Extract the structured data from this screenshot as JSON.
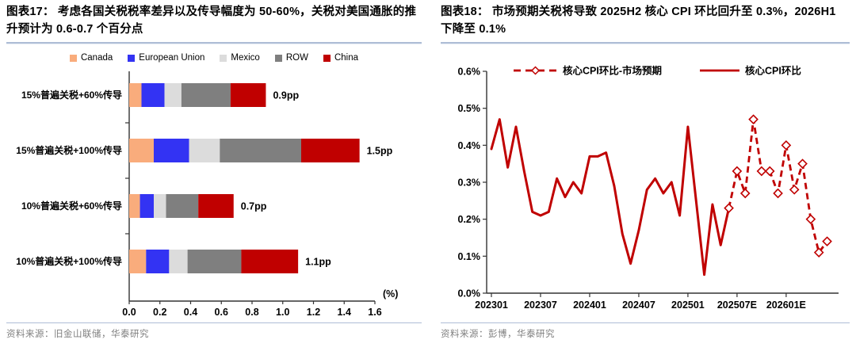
{
  "colors": {
    "accent_rule": "#AEBDD6",
    "axis": "#333333",
    "red_line": "#C00000",
    "source_gray": "#7F7F7F",
    "bar_palette": [
      "#F9AC7C",
      "#3333F3",
      "#DCDCDC",
      "#7F7F7F",
      "#C00000"
    ]
  },
  "figure17": {
    "title": "图表17： 考虑各国关税税率差异以及传导幅度为 50-60%，关税对美国通胀的推升预计为 0.6-0.7 个百分点",
    "source": "资料来源：旧金山联储，华泰研究",
    "chart_data": {
      "type": "bar",
      "orientation": "horizontal",
      "stacked": true,
      "legend_position": "top",
      "grid": false,
      "series_names": [
        "Canada",
        "European Union",
        "Mexico",
        "ROW",
        "China"
      ],
      "series_colors": [
        "#F9AC7C",
        "#3333F3",
        "#DCDCDC",
        "#7F7F7F",
        "#C00000"
      ],
      "categories": [
        "15%普遍关税+60%传导",
        "15%普遍关税+100%传导",
        "10%普遍关税+60%传导",
        "10%普遍关税+100%传导"
      ],
      "values": [
        [
          0.08,
          0.15,
          0.11,
          0.32,
          0.23
        ],
        [
          0.16,
          0.23,
          0.2,
          0.53,
          0.38
        ],
        [
          0.07,
          0.09,
          0.08,
          0.21,
          0.23
        ],
        [
          0.11,
          0.15,
          0.12,
          0.35,
          0.37
        ]
      ],
      "total_labels": [
        "0.9pp",
        "1.5pp",
        "0.7pp",
        "1.1pp"
      ],
      "xlim": [
        0,
        1.6
      ],
      "x_ticks": [
        "0.0",
        "0.2",
        "0.4",
        "0.6",
        "0.8",
        "1.0",
        "1.2",
        "1.4",
        "1.6"
      ],
      "x_unit_label": "(%)"
    }
  },
  "figure18": {
    "title": "图表18： 市场预期关税将导致 2025H2 核心 CPI 环比回升至 0.3%，2026H1 下降至 0.1%",
    "source": "资料来源：彭博，华泰研究",
    "chart_data": {
      "type": "line",
      "grid": false,
      "legend_position": "top-inside",
      "ylim": [
        0,
        0.6
      ],
      "y_ticks": [
        "0.0%",
        "0.1%",
        "0.2%",
        "0.3%",
        "0.4%",
        "0.5%",
        "0.6%"
      ],
      "x_range_months": 42,
      "x_tick_months": [
        0,
        6,
        12,
        18,
        24,
        30,
        36
      ],
      "x_tick_labels": [
        "202301",
        "202307",
        "202401",
        "202407",
        "202501",
        "202507E",
        "202601E"
      ],
      "series": [
        {
          "name": "核心CPI环比",
          "style": "solid",
          "color": "#C00000",
          "start_month": 0,
          "start_label": "202301",
          "values": [
            0.39,
            0.47,
            0.34,
            0.45,
            0.33,
            0.22,
            0.21,
            0.22,
            0.31,
            0.26,
            0.3,
            0.27,
            0.37,
            0.37,
            0.38,
            0.29,
            0.16,
            0.08,
            0.17,
            0.28,
            0.31,
            0.27,
            0.3,
            0.21,
            0.45,
            0.25,
            0.05,
            0.24,
            0.13,
            0.23
          ]
        },
        {
          "name": "核心CPI环比-市场预期",
          "style": "dashed-diamond",
          "color": "#C00000",
          "start_month": 29,
          "start_label": "202506",
          "values": [
            0.23,
            0.33,
            0.27,
            0.47,
            0.33,
            0.33,
            0.27,
            0.4,
            0.28,
            0.35,
            0.2,
            0.11,
            0.14
          ]
        }
      ]
    }
  }
}
